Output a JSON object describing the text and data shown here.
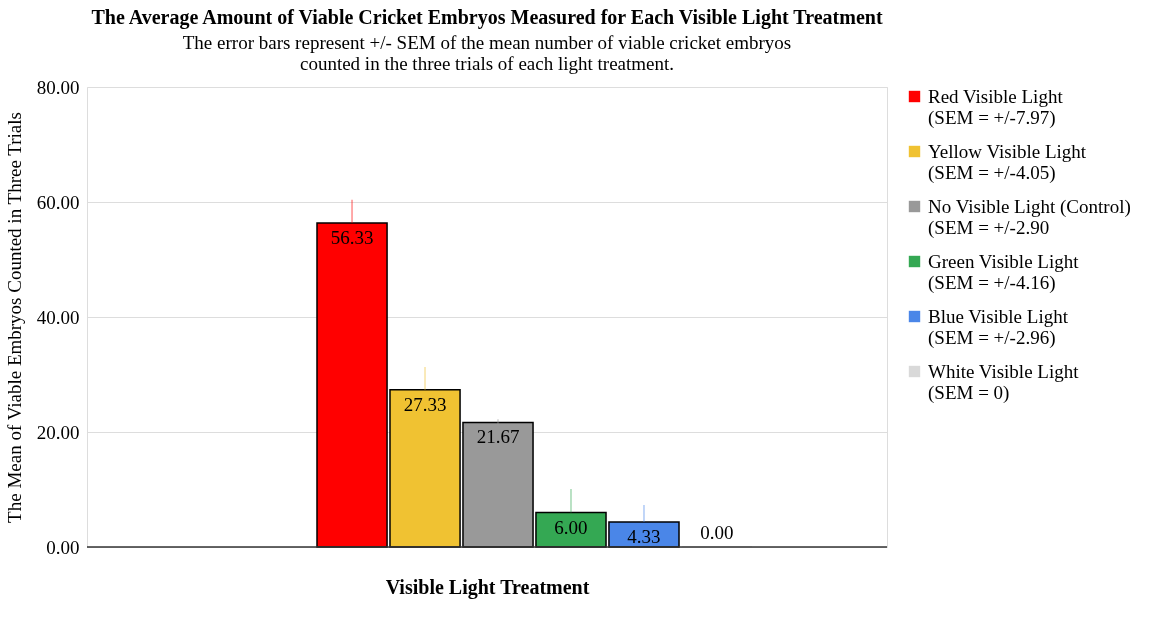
{
  "chart_data": {
    "type": "bar",
    "title": "The Average Amount of Viable Cricket Embryos Measured for Each Visible Light Treatment",
    "subtitle": "The error bars represent +/- SEM of the mean number of viable cricket embryos\ncounted in the three trials of each light treatment.",
    "xlabel": "Visible Light Treatment",
    "ylabel": "The Mean of Viable Embryos Counted in Three Trials",
    "categories": [
      null
    ],
    "series": [
      {
        "name": "Red Visible Light\n(SEM = +/-7.97)",
        "color": "#ff0000",
        "values": [
          56.33
        ],
        "value_labels": [
          "56.33"
        ],
        "errors": [
          [
            56.33,
            60.4
          ]
        ]
      },
      {
        "name": "Yellow Visible Light\n(SEM = +/-4.05)",
        "color": "#f0c232",
        "values": [
          27.33
        ],
        "value_labels": [
          "27.33"
        ],
        "errors": [
          [
            27.33,
            31.3
          ]
        ]
      },
      {
        "name": "No Visible Light (Control)\n(SEM = +/-2.90",
        "color": "#999999",
        "values": [
          21.67
        ],
        "value_labels": [
          "21.67"
        ],
        "errors": [
          [
            21.0,
            22.2
          ]
        ]
      },
      {
        "name": "Green Visible Light\n(SEM = +/-4.16)",
        "color": "#34a853",
        "values": [
          6.0
        ],
        "value_labels": [
          "6.00"
        ],
        "errors": [
          [
            6.0,
            10.1
          ]
        ]
      },
      {
        "name": "Blue Visible Light\n(SEM = +/-2.96)",
        "color": "#4a86e8",
        "values": [
          4.33
        ],
        "value_labels": [
          "4.33"
        ],
        "errors": [
          [
            4.33,
            7.3
          ]
        ]
      },
      {
        "name": "White Visible Light\n(SEM = 0)",
        "color": "#d9d9d9",
        "values": [
          0.0
        ],
        "value_labels": [
          "0.00"
        ],
        "errors": [
          null
        ]
      }
    ],
    "ylim": [
      0,
      80
    ],
    "yticks": [
      {
        "value": 0,
        "label": "0.00"
      },
      {
        "value": 20,
        "label": "20.00"
      },
      {
        "value": 40,
        "label": "40.00"
      },
      {
        "value": 60,
        "label": "60.00"
      },
      {
        "value": 80,
        "label": "80.00"
      }
    ],
    "grid": "y",
    "legend": "right",
    "tick_labels": "y"
  }
}
